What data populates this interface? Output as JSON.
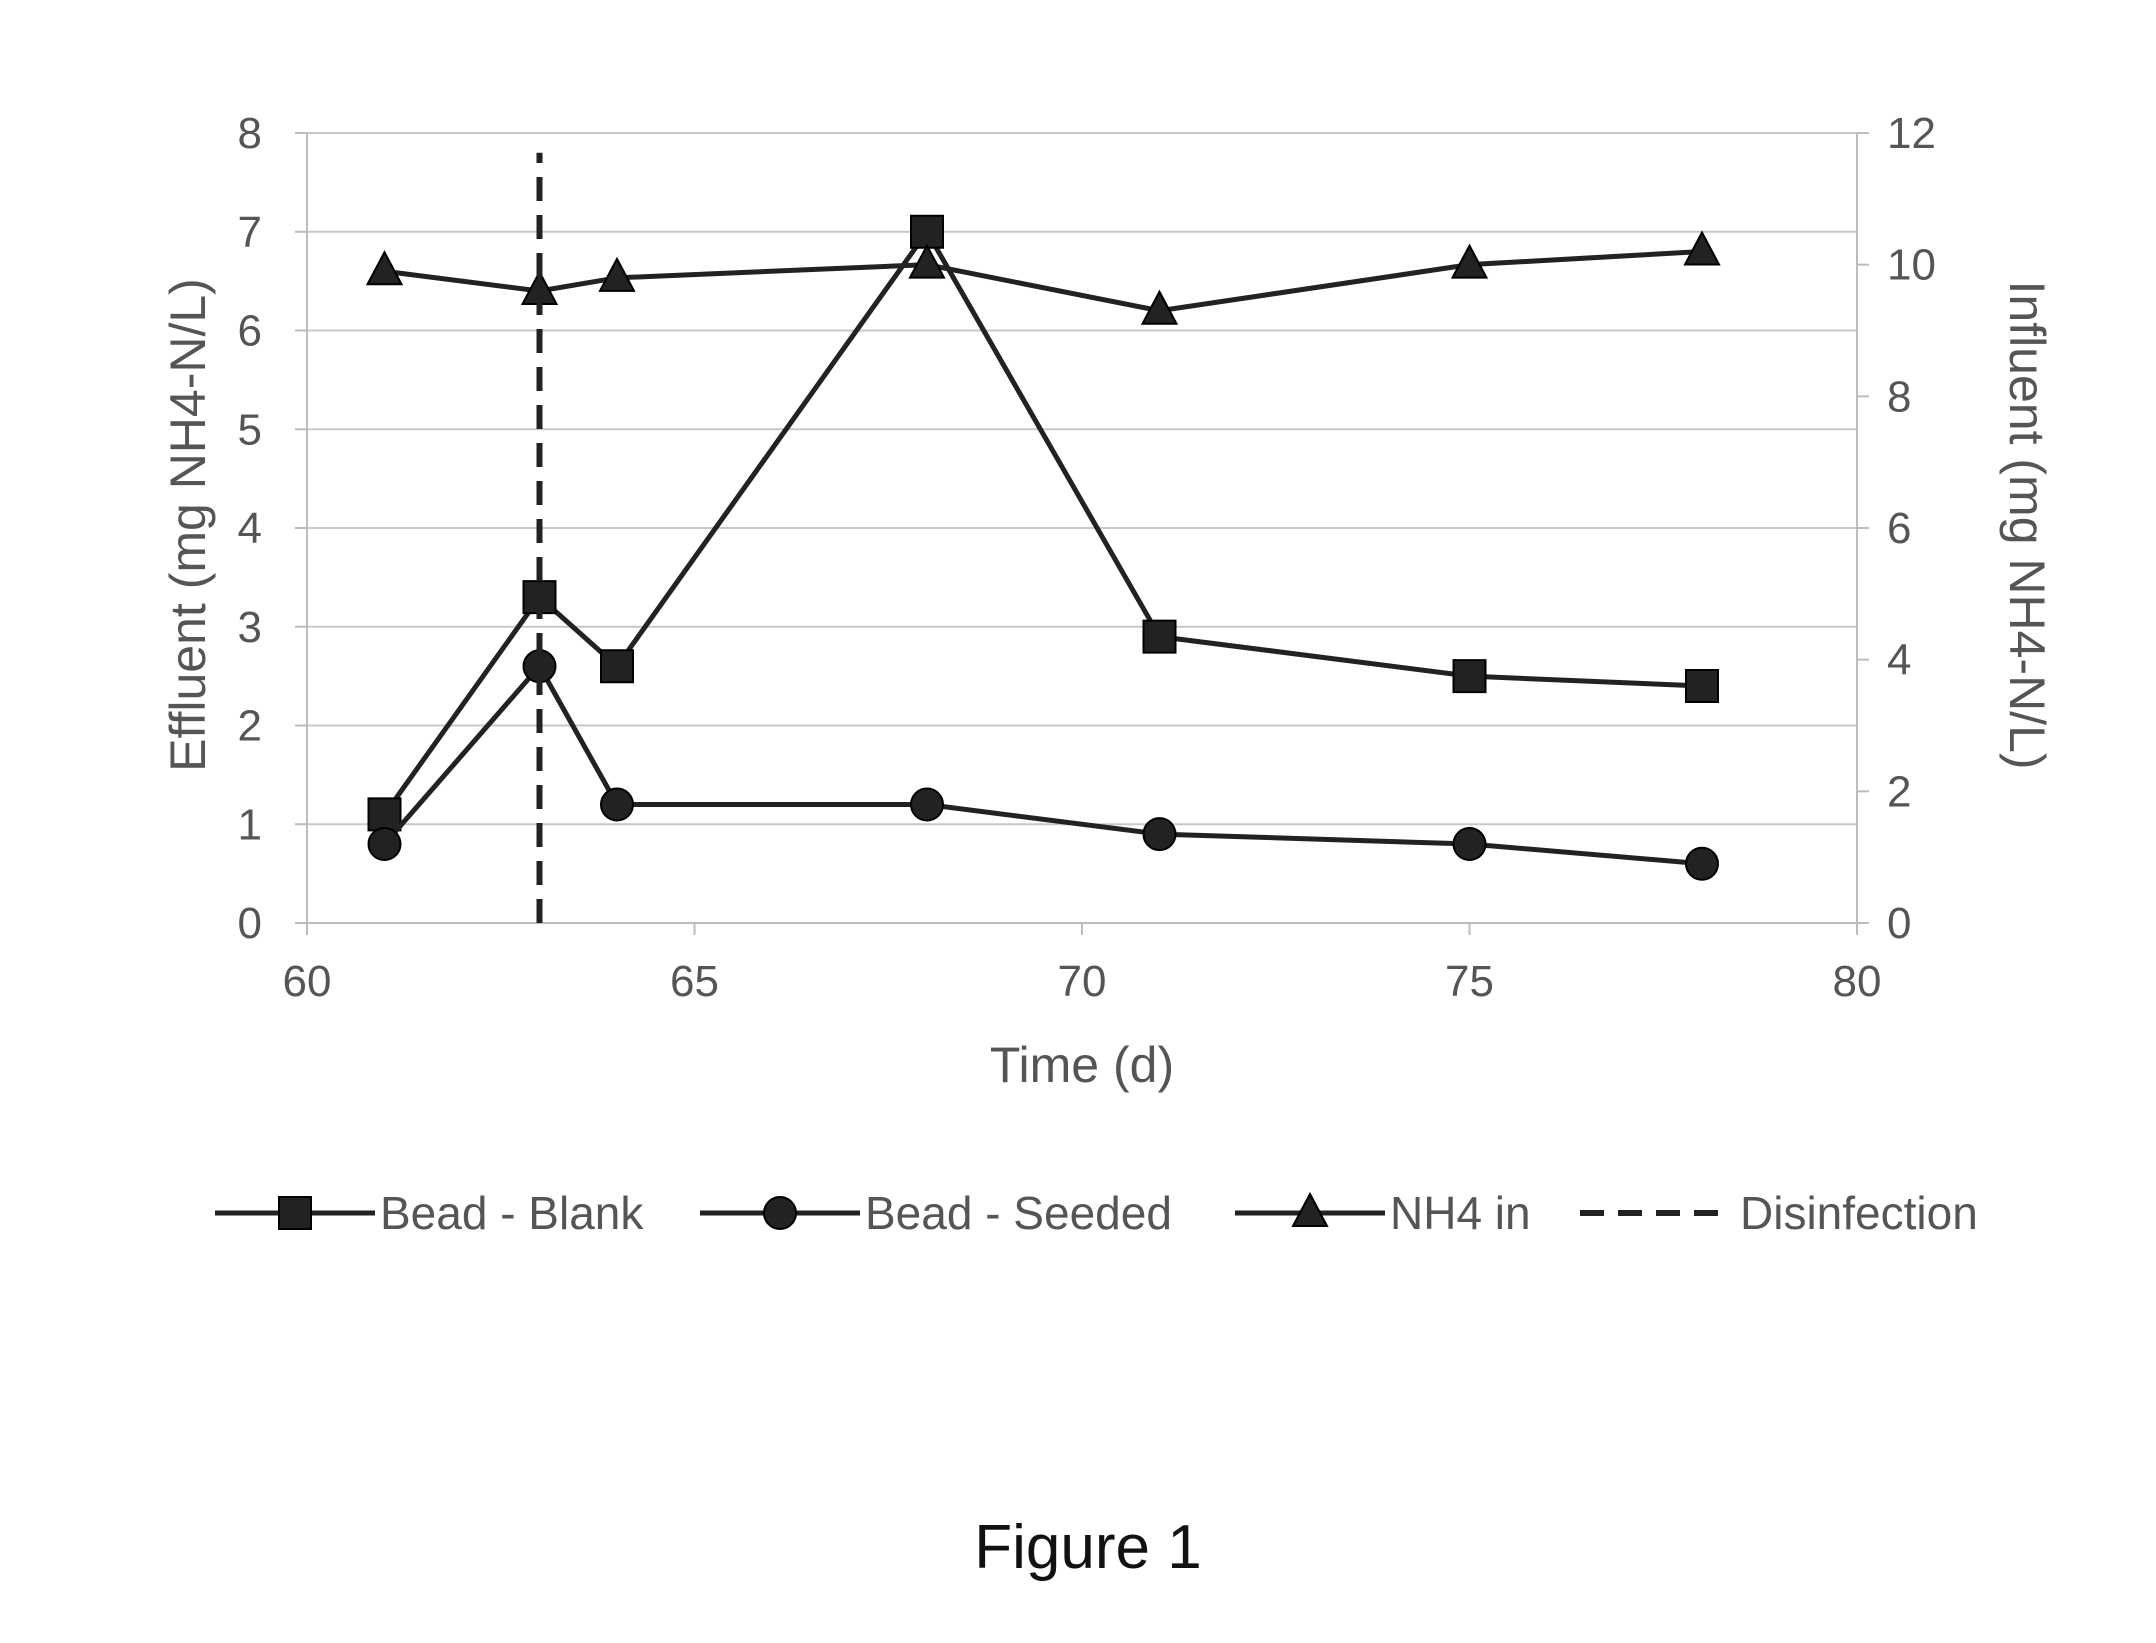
{
  "chart_data": {
    "type": "line",
    "title": "",
    "xlabel": "Time (d)",
    "ylabel": "Effluent (mg NH4-N/L)",
    "y2label": "Influent (mg NH4-N/L)",
    "xlim": [
      60,
      80
    ],
    "ylim": [
      0,
      8
    ],
    "y2lim": [
      0,
      12
    ],
    "x_ticks": [
      60,
      65,
      70,
      75,
      80
    ],
    "y_ticks": [
      0,
      1,
      2,
      3,
      4,
      5,
      6,
      7,
      8
    ],
    "y2_ticks": [
      0,
      2,
      4,
      6,
      8,
      10,
      12
    ],
    "grid": true,
    "legend_position": "bottom",
    "series": [
      {
        "name": "Bead - Blank",
        "axis": "left",
        "marker": "square",
        "color": "#222222",
        "x": [
          61,
          63,
          64,
          68,
          71,
          75,
          78
        ],
        "values": [
          1.1,
          3.3,
          2.6,
          7.0,
          2.9,
          2.5,
          2.4
        ]
      },
      {
        "name": "Bead - Seeded",
        "axis": "left",
        "marker": "circle",
        "color": "#222222",
        "x": [
          61,
          63,
          64,
          68,
          71,
          75,
          78
        ],
        "values": [
          0.8,
          2.6,
          1.2,
          1.2,
          0.9,
          0.8,
          0.6
        ]
      },
      {
        "name": "NH4 in",
        "axis": "right",
        "marker": "triangle",
        "color": "#222222",
        "x": [
          61,
          63,
          64,
          68,
          71,
          75,
          78
        ],
        "values": [
          9.9,
          9.6,
          9.8,
          10.0,
          9.3,
          10.0,
          10.2
        ]
      },
      {
        "name": "Disinfection",
        "axis": "left",
        "style": "dashed",
        "color": "#222222",
        "x": [
          63,
          63
        ],
        "values": [
          0,
          7.8
        ]
      }
    ]
  },
  "figure_caption": "Figure 1"
}
